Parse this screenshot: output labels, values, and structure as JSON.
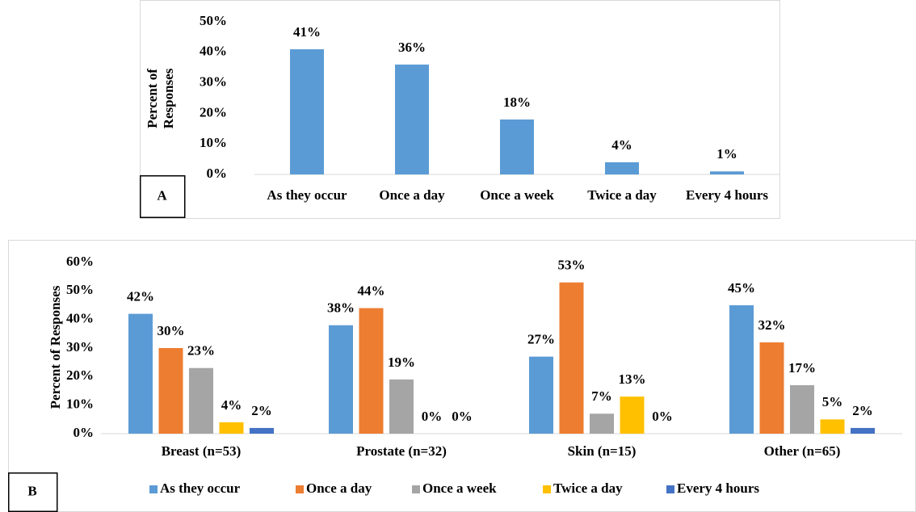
{
  "chart_data": [
    {
      "type": "bar",
      "panel_label": "A",
      "y_label": [
        "Percent of",
        "Responses"
      ],
      "categories": [
        "As they occur",
        "Once a day",
        "Once a week",
        "Twice a day",
        "Every 4 hours"
      ],
      "values": [
        41,
        36,
        18,
        4,
        1
      ],
      "value_labels": [
        "41%",
        "36%",
        "18%",
        "4%",
        "1%"
      ],
      "color": "#5b9bd5",
      "ylim": [
        0,
        50
      ],
      "yticks": [
        {
          "value": 0,
          "label": "0%"
        },
        {
          "value": 10,
          "label": "10%"
        },
        {
          "value": 20,
          "label": "20%"
        },
        {
          "value": 30,
          "label": "30%"
        },
        {
          "value": 40,
          "label": "40%"
        },
        {
          "value": 50,
          "label": "50%"
        }
      ]
    },
    {
      "type": "grouped_bar",
      "panel_label": "B",
      "y_label": [
        "Percent of Responses"
      ],
      "categories": [
        "Breast (n=53)",
        "Prostate (n=32)",
        "Skin (n=15)",
        "Other (n=65)"
      ],
      "series": [
        {
          "name": "As they occur",
          "color": "#5b9bd5",
          "values": [
            42,
            38,
            27,
            45
          ],
          "value_labels": [
            "42%",
            "38%",
            "27%",
            "45%"
          ]
        },
        {
          "name": "Once a day",
          "color": "#ed7d31",
          "values": [
            30,
            44,
            53,
            32
          ],
          "value_labels": [
            "30%",
            "44%",
            "53%",
            "32%"
          ]
        },
        {
          "name": "Once a week",
          "color": "#a5a5a5",
          "values": [
            23,
            19,
            7,
            17
          ],
          "value_labels": [
            "23%",
            "19%",
            "7%",
            "17%"
          ]
        },
        {
          "name": "Twice a day",
          "color": "#ffc000",
          "values": [
            4,
            0,
            13,
            5
          ],
          "value_labels": [
            "4%",
            "0%",
            "13%",
            "5%"
          ]
        },
        {
          "name": "Every 4 hours",
          "color": "#4472c4",
          "values": [
            2,
            0,
            0,
            2
          ],
          "value_labels": [
            "2%",
            "0%",
            "0%",
            "2%"
          ]
        }
      ],
      "ylim": [
        0,
        60
      ],
      "yticks": [
        {
          "value": 0,
          "label": "0%"
        },
        {
          "value": 10,
          "label": "10%"
        },
        {
          "value": 20,
          "label": "20%"
        },
        {
          "value": 30,
          "label": "30%"
        },
        {
          "value": 40,
          "label": "40%"
        },
        {
          "value": 50,
          "label": "50%"
        },
        {
          "value": 60,
          "label": "60%"
        }
      ],
      "legend": "bottom"
    }
  ]
}
